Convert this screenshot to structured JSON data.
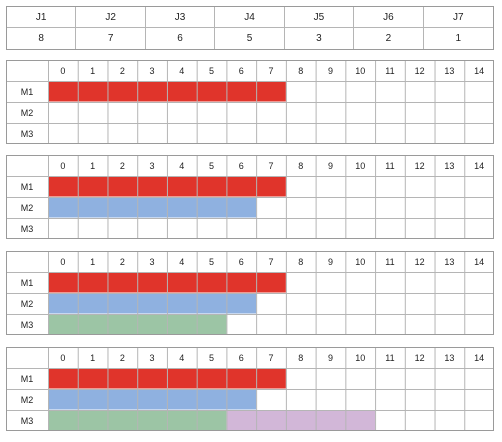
{
  "jobs_table": {
    "jobs": [
      {
        "label": "J1",
        "duration": "8"
      },
      {
        "label": "J2",
        "duration": "7"
      },
      {
        "label": "J3",
        "duration": "6"
      },
      {
        "label": "J4",
        "duration": "5"
      },
      {
        "label": "J5",
        "duration": "3"
      },
      {
        "label": "J6",
        "duration": "2"
      },
      {
        "label": "J7",
        "duration": "1"
      }
    ]
  },
  "colors": {
    "J1": "#e0342b",
    "J2": "#8fb1e0",
    "J3": "#9cc5a5",
    "J4": "#d2b7d8",
    "grid": "#b5b5b5",
    "border": "#9a9a9a"
  },
  "chart_data": [
    {
      "type": "gantt",
      "time_ticks": [
        0,
        1,
        2,
        3,
        4,
        5,
        6,
        7,
        8,
        9,
        10,
        11,
        12,
        13,
        14
      ],
      "machines": [
        "M1",
        "M2",
        "M3"
      ],
      "tasks": [
        {
          "job": "J1",
          "machine": "M1",
          "start": 0,
          "end": 8
        }
      ]
    },
    {
      "type": "gantt",
      "time_ticks": [
        0,
        1,
        2,
        3,
        4,
        5,
        6,
        7,
        8,
        9,
        10,
        11,
        12,
        13,
        14
      ],
      "machines": [
        "M1",
        "M2",
        "M3"
      ],
      "tasks": [
        {
          "job": "J1",
          "machine": "M1",
          "start": 0,
          "end": 8
        },
        {
          "job": "J2",
          "machine": "M2",
          "start": 0,
          "end": 7
        }
      ]
    },
    {
      "type": "gantt",
      "time_ticks": [
        0,
        1,
        2,
        3,
        4,
        5,
        6,
        7,
        8,
        9,
        10,
        11,
        12,
        13,
        14
      ],
      "machines": [
        "M1",
        "M2",
        "M3"
      ],
      "tasks": [
        {
          "job": "J1",
          "machine": "M1",
          "start": 0,
          "end": 8
        },
        {
          "job": "J2",
          "machine": "M2",
          "start": 0,
          "end": 7
        },
        {
          "job": "J3",
          "machine": "M3",
          "start": 0,
          "end": 6
        }
      ]
    },
    {
      "type": "gantt",
      "time_ticks": [
        0,
        1,
        2,
        3,
        4,
        5,
        6,
        7,
        8,
        9,
        10,
        11,
        12,
        13,
        14
      ],
      "machines": [
        "M1",
        "M2",
        "M3"
      ],
      "tasks": [
        {
          "job": "J1",
          "machine": "M1",
          "start": 0,
          "end": 8
        },
        {
          "job": "J2",
          "machine": "M2",
          "start": 0,
          "end": 7
        },
        {
          "job": "J3",
          "machine": "M3",
          "start": 0,
          "end": 6
        },
        {
          "job": "J4",
          "machine": "M3",
          "start": 6,
          "end": 11
        }
      ]
    }
  ]
}
